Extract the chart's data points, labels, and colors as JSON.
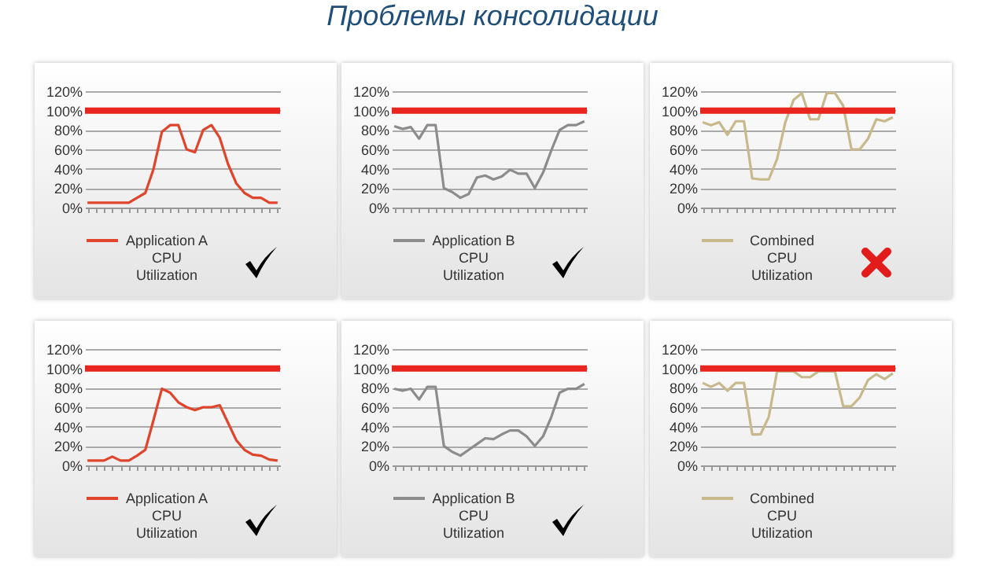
{
  "chart_data": [
    {
      "type": "line",
      "categories": [
        null,
        null,
        null,
        null,
        null,
        null,
        null,
        null,
        null,
        null,
        null,
        null,
        null,
        null,
        null,
        null,
        null,
        null,
        null,
        null,
        null,
        null,
        null,
        null
      ],
      "ylim": [
        0,
        120
      ],
      "yticks": [
        {
          "value": 0,
          "label": "0%"
        },
        {
          "value": 20,
          "label": "20%"
        },
        {
          "value": 40,
          "label": "40%"
        },
        {
          "value": 60,
          "label": "60%"
        },
        {
          "value": 80,
          "label": "80%"
        },
        {
          "value": 100,
          "label": "100%"
        },
        {
          "value": 120,
          "label": "120%"
        }
      ],
      "grid": "y",
      "legend": "bottom",
      "tick_labels": "y",
      "ref_lines": [
        {
          "axis": "y",
          "value": 100,
          "color": "#e8251e"
        }
      ],
      "series": [
        {
          "name": "Application A CPU Utilization",
          "color": "#e0452c",
          "values": [
            5,
            5,
            5,
            5,
            5,
            5,
            10,
            15,
            40,
            78,
            85,
            85,
            60,
            57,
            80,
            85,
            72,
            45,
            25,
            15,
            10,
            10,
            5,
            5
          ]
        }
      ]
    },
    {
      "type": "line",
      "categories": [
        null,
        null,
        null,
        null,
        null,
        null,
        null,
        null,
        null,
        null,
        null,
        null,
        null,
        null,
        null,
        null,
        null,
        null,
        null,
        null,
        null,
        null,
        null,
        null
      ],
      "ylim": [
        0,
        120
      ],
      "yticks": [
        {
          "value": 0,
          "label": "0%"
        },
        {
          "value": 20,
          "label": "20%"
        },
        {
          "value": 40,
          "label": "40%"
        },
        {
          "value": 60,
          "label": "60%"
        },
        {
          "value": 80,
          "label": "80%"
        },
        {
          "value": 100,
          "label": "100%"
        },
        {
          "value": 120,
          "label": "120%"
        }
      ],
      "grid": "y",
      "legend": "bottom",
      "tick_labels": "y",
      "ref_lines": [
        {
          "axis": "y",
          "value": 100,
          "color": "#e8251e"
        }
      ],
      "title": "Проблемы консолидации",
      "series": [
        {
          "name": "Application B CPU Utilization",
          "color": "#8c8c8c",
          "values": [
            84,
            81,
            83,
            71,
            85,
            85,
            20,
            16,
            10,
            14,
            31,
            33,
            29,
            32,
            39,
            35,
            35,
            20,
            36,
            59,
            80,
            85,
            85,
            89
          ]
        }
      ]
    },
    {
      "type": "line",
      "categories": [
        null,
        null,
        null,
        null,
        null,
        null,
        null,
        null,
        null,
        null,
        null,
        null,
        null,
        null,
        null,
        null,
        null,
        null,
        null,
        null,
        null,
        null,
        null,
        null
      ],
      "ylim": [
        0,
        120
      ],
      "yticks": [
        {
          "value": 0,
          "label": "0%"
        },
        {
          "value": 20,
          "label": "20%"
        },
        {
          "value": 40,
          "label": "40%"
        },
        {
          "value": 60,
          "label": "60%"
        },
        {
          "value": 80,
          "label": "80%"
        },
        {
          "value": 100,
          "label": "100%"
        },
        {
          "value": 120,
          "label": "120%"
        }
      ],
      "grid": "y",
      "legend": "bottom",
      "tick_labels": "y",
      "ref_lines": [
        {
          "axis": "y",
          "value": 100,
          "color": "#e8251e"
        }
      ],
      "series": [
        {
          "name": "Combined CPU Utilization",
          "color": "#c8b98c",
          "values": [
            88,
            85,
            88,
            75,
            89,
            89,
            30,
            29,
            29,
            50,
            88,
            111,
            118,
            91,
            91,
            118,
            118,
            105,
            60,
            60,
            71,
            91,
            89,
            93
          ]
        }
      ]
    },
    {
      "type": "line",
      "categories": [
        null,
        null,
        null,
        null,
        null,
        null,
        null,
        null,
        null,
        null,
        null,
        null,
        null,
        null,
        null,
        null,
        null,
        null,
        null,
        null,
        null,
        null,
        null,
        null
      ],
      "ylim": [
        0,
        120
      ],
      "yticks": [
        {
          "value": 0,
          "label": "0%"
        },
        {
          "value": 20,
          "label": "20%"
        },
        {
          "value": 40,
          "label": "40%"
        },
        {
          "value": 60,
          "label": "60%"
        },
        {
          "value": 80,
          "label": "80%"
        },
        {
          "value": 100,
          "label": "100%"
        },
        {
          "value": 120,
          "label": "120%"
        }
      ],
      "grid": "y",
      "legend": "bottom",
      "tick_labels": "y",
      "ref_lines": [
        {
          "axis": "y",
          "value": 100,
          "color": "#e8251e"
        }
      ],
      "series": [
        {
          "name": "Application A CPU Utilization",
          "color": "#e0452c",
          "values": [
            5,
            5,
            5,
            9,
            5,
            5,
            10,
            16,
            47,
            79,
            75,
            65,
            60,
            57,
            60,
            60,
            62,
            44,
            26,
            16,
            11,
            10,
            6,
            5
          ]
        }
      ]
    },
    {
      "type": "line",
      "categories": [
        null,
        null,
        null,
        null,
        null,
        null,
        null,
        null,
        null,
        null,
        null,
        null,
        null,
        null,
        null,
        null,
        null,
        null,
        null,
        null,
        null,
        null,
        null,
        null
      ],
      "ylim": [
        0,
        120
      ],
      "yticks": [
        {
          "value": 0,
          "label": "0%"
        },
        {
          "value": 20,
          "label": "20%"
        },
        {
          "value": 40,
          "label": "40%"
        },
        {
          "value": 60,
          "label": "60%"
        },
        {
          "value": 80,
          "label": "80%"
        },
        {
          "value": 100,
          "label": "100%"
        },
        {
          "value": 120,
          "label": "120%"
        }
      ],
      "grid": "y",
      "legend": "bottom",
      "tick_labels": "y",
      "ref_lines": [
        {
          "axis": "y",
          "value": 100,
          "color": "#e8251e"
        }
      ],
      "series": [
        {
          "name": "Application B CPU Utilization",
          "color": "#8c8c8c",
          "values": [
            79,
            77,
            79,
            68,
            81,
            81,
            20,
            14,
            10,
            16,
            22,
            28,
            27,
            32,
            36,
            36,
            30,
            20,
            30,
            50,
            75,
            79,
            79,
            84
          ]
        }
      ]
    },
    {
      "type": "line",
      "categories": [
        null,
        null,
        null,
        null,
        null,
        null,
        null,
        null,
        null,
        null,
        null,
        null,
        null,
        null,
        null,
        null,
        null,
        null,
        null,
        null,
        null,
        null,
        null,
        null
      ],
      "ylim": [
        0,
        120
      ],
      "yticks": [
        {
          "value": 0,
          "label": "0%"
        },
        {
          "value": 20,
          "label": "20%"
        },
        {
          "value": 40,
          "label": "40%"
        },
        {
          "value": 60,
          "label": "60%"
        },
        {
          "value": 80,
          "label": "80%"
        },
        {
          "value": 100,
          "label": "100%"
        },
        {
          "value": 120,
          "label": "120%"
        }
      ],
      "grid": "y",
      "legend": "bottom",
      "tick_labels": "y",
      "ref_lines": [
        {
          "axis": "y",
          "value": 100,
          "color": "#e8251e"
        }
      ],
      "series": [
        {
          "name": "Combined CPU Utilization",
          "color": "#c8b98c",
          "values": [
            85,
            81,
            85,
            77,
            85,
            85,
            32,
            32,
            50,
            97,
            97,
            97,
            91,
            91,
            97,
            97,
            97,
            61,
            61,
            70,
            88,
            94,
            89,
            95
          ]
        }
      ]
    }
  ]
}
